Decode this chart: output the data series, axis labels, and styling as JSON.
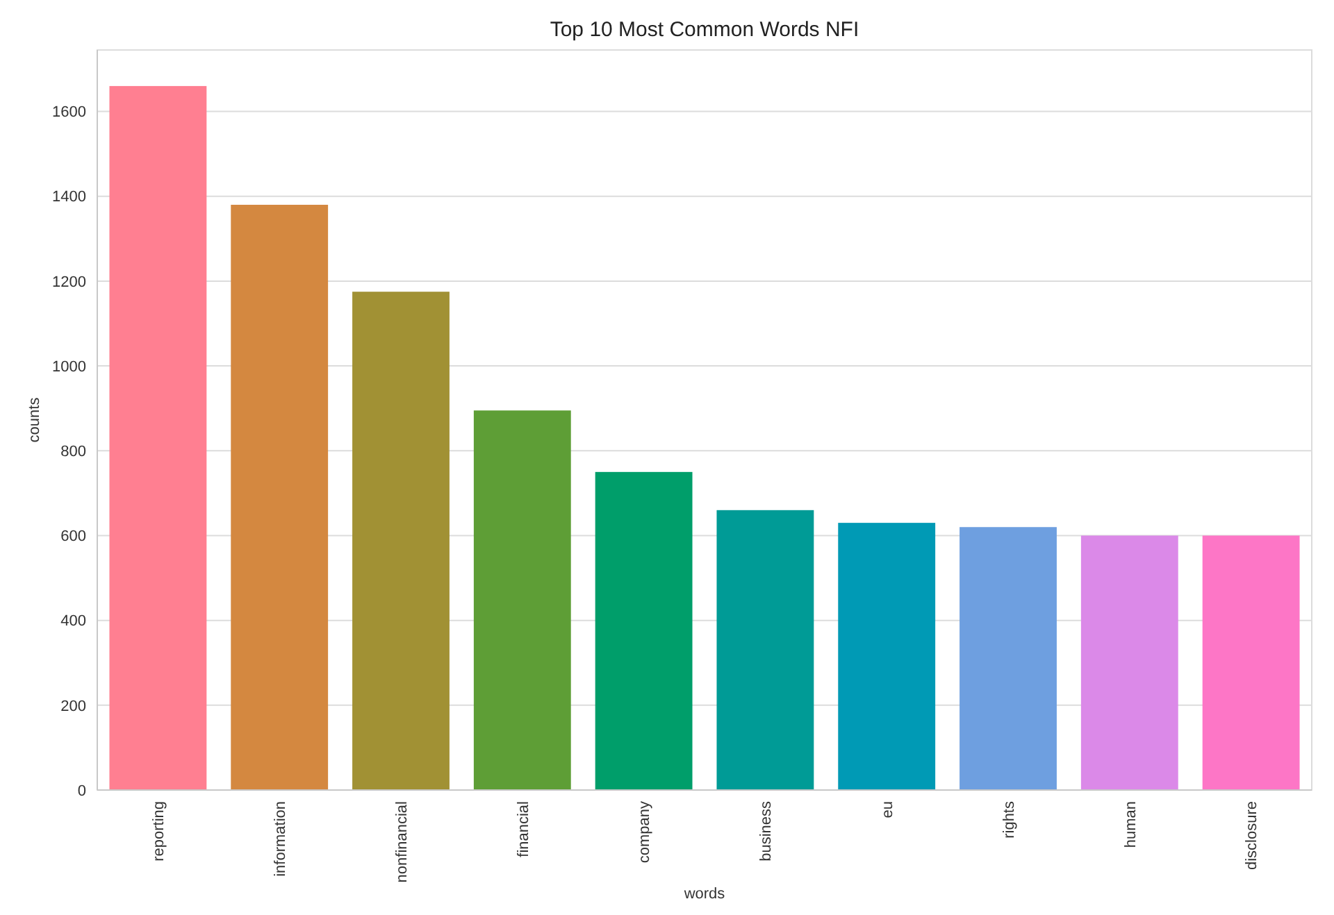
{
  "chart_data": {
    "type": "bar",
    "title": "Top 10 Most Common Words NFI",
    "xlabel": "words",
    "ylabel": "counts",
    "categories": [
      "reporting",
      "information",
      "nonfinancial",
      "financial",
      "company",
      "business",
      "eu",
      "rights",
      "human",
      "disclosure"
    ],
    "values": [
      1660,
      1380,
      1175,
      895,
      750,
      660,
      630,
      620,
      600,
      600
    ],
    "colors": [
      "#ff7f91",
      "#d48840",
      "#a19134",
      "#5e9e36",
      "#009e6a",
      "#009b96",
      "#009ab5",
      "#6e9fe0",
      "#db89e8",
      "#fd76c6"
    ],
    "ylim": [
      0,
      1745
    ],
    "yticks": [
      0,
      200,
      400,
      600,
      800,
      1000,
      1200,
      1400,
      1600
    ],
    "grid": "y"
  }
}
